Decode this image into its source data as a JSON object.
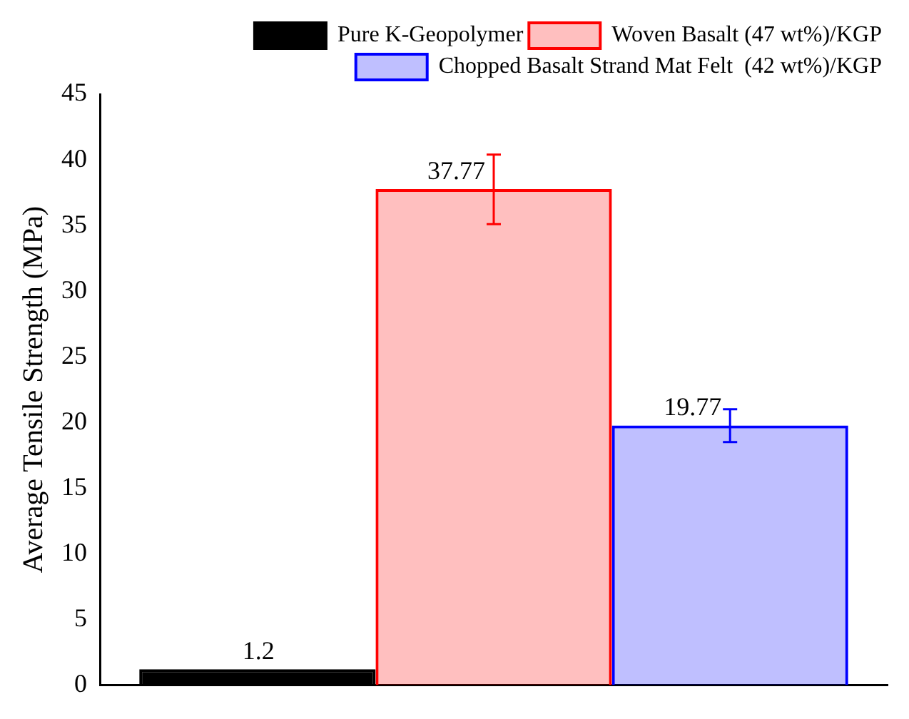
{
  "chart_data": {
    "type": "bar",
    "ylabel": "Average Tensile Strength (MPa)",
    "categories": [
      null
    ],
    "series": [
      {
        "name": "Pure K-Geopolymer",
        "color": "#000000",
        "values": [
          1.2
        ]
      },
      {
        "name": "Woven Basalt (47 wt%)/KGP",
        "color": "#ff0000",
        "values": [
          37.77
        ],
        "errors": [
          [
            35.1,
            40.4
          ]
        ]
      },
      {
        "name": "Chopped Basalt Strand Mat Felt  (42 wt%)/KGP",
        "color": "#0000ff",
        "values": [
          19.77
        ],
        "errors": [
          [
            18.5,
            21.0
          ]
        ]
      }
    ],
    "ylim": [
      0,
      45
    ],
    "yticks": [
      0,
      5,
      10,
      15,
      20,
      25,
      30,
      35,
      40,
      45
    ],
    "grid": false,
    "legend": "top right",
    "data_labels": true
  }
}
